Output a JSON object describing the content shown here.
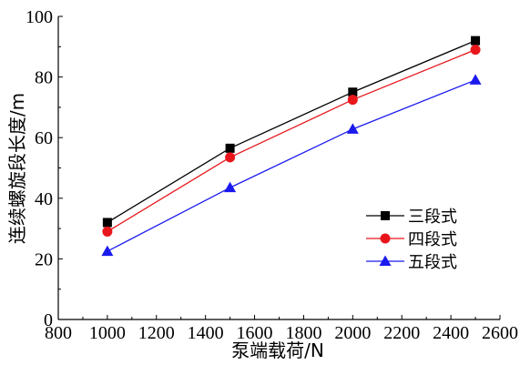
{
  "chart_data": {
    "type": "line",
    "xlabel": "泵端载荷/N",
    "ylabel": "连续螺旋段长度/m",
    "xlim": [
      800,
      2600
    ],
    "ylim": [
      0,
      100
    ],
    "xticks": [
      800,
      1000,
      1200,
      1400,
      1600,
      1800,
      2000,
      2200,
      2400,
      2600
    ],
    "yticks": [
      0,
      20,
      40,
      60,
      80,
      100
    ],
    "x": [
      1000,
      1500,
      2000,
      2500
    ],
    "grid": false,
    "legend_position": "bottom-right",
    "series": [
      {
        "name": "三段式",
        "values": [
          32,
          56.5,
          75,
          92
        ],
        "color": "#000000",
        "marker": "square"
      },
      {
        "name": "四段式",
        "values": [
          29,
          53.5,
          72.5,
          89
        ],
        "color": "#e8161b",
        "marker": "circle"
      },
      {
        "name": "五段式",
        "values": [
          22.5,
          43.5,
          62.8,
          79
        ],
        "color": "#1a1aef",
        "marker": "triangle"
      }
    ]
  }
}
